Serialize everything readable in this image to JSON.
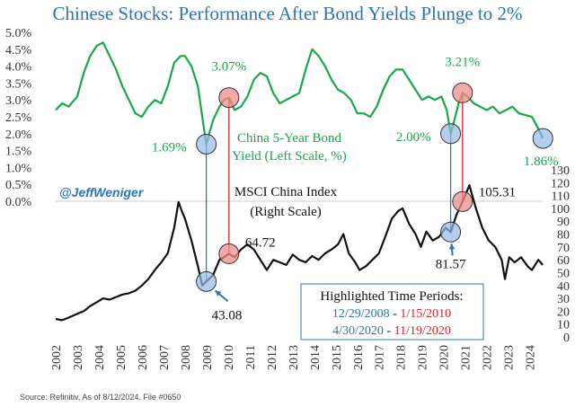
{
  "chart_data": {
    "type": "line",
    "title": "Chinese Stocks: Performance After Bond Yields Plunge to 2%",
    "source": "Source: Refinitiv, As of 8/12/2024. File #0650",
    "handle": "@JeffWeniger",
    "colors": {
      "yield": "#1aa64a",
      "index": "#111111",
      "blue": "#2e74b5",
      "red": "#e02020",
      "title": "#2e74b5"
    },
    "x_ticks": [
      "2002",
      "2003",
      "2004",
      "2005",
      "2006",
      "2007",
      "2008",
      "2009",
      "2010",
      "2011",
      "2012",
      "2013",
      "2014",
      "2015",
      "2016",
      "2017",
      "2018",
      "2019",
      "2020",
      "2021",
      "2022",
      "2023",
      "2024"
    ],
    "xlim": [
      2002,
      2024.6
    ],
    "left_axis": {
      "label": "China 5-Year Bond Yield (Left Scale, %)",
      "ylim": [
        0,
        5
      ],
      "ticks": [
        "0.0%",
        "0.5%",
        "1.0%",
        "1.5%",
        "2.0%",
        "2.5%",
        "3.0%",
        "3.5%",
        "4.0%",
        "4.5%",
        "5.0%"
      ]
    },
    "right_axis": {
      "label": "MSCI China Index (Right Scale)",
      "ylim": [
        0,
        130
      ],
      "ticks": [
        "0",
        "10",
        "20",
        "30",
        "40",
        "50",
        "60",
        "70",
        "80",
        "90",
        "100",
        "110",
        "120",
        "130"
      ]
    },
    "series": [
      {
        "name": "China 5-Year Bond Yield (Left Scale, %)",
        "axis": "left",
        "x": [
          2002.0,
          2002.3,
          2002.6,
          2003.0,
          2003.3,
          2003.6,
          2003.9,
          2004.2,
          2004.5,
          2004.8,
          2005.1,
          2005.4,
          2005.7,
          2006.0,
          2006.3,
          2006.6,
          2006.9,
          2007.2,
          2007.5,
          2007.8,
          2008.0,
          2008.3,
          2008.6,
          2008.8,
          2008.99,
          2009.3,
          2009.6,
          2009.8,
          2010.04,
          2010.3,
          2010.6,
          2010.9,
          2011.2,
          2011.5,
          2011.8,
          2012.1,
          2012.4,
          2012.7,
          2013.0,
          2013.3,
          2013.6,
          2013.9,
          2014.2,
          2014.5,
          2014.8,
          2015.1,
          2015.4,
          2015.7,
          2016.0,
          2016.3,
          2016.6,
          2016.9,
          2017.2,
          2017.5,
          2017.8,
          2018.1,
          2018.4,
          2018.7,
          2019.0,
          2019.3,
          2019.6,
          2019.9,
          2020.15,
          2020.33,
          2020.5,
          2020.7,
          2020.88,
          2021.1,
          2021.4,
          2021.7,
          2022.0,
          2022.3,
          2022.6,
          2022.9,
          2023.2,
          2023.5,
          2023.8,
          2024.1,
          2024.4,
          2024.61
        ],
        "y": [
          2.7,
          2.9,
          2.8,
          3.1,
          3.8,
          4.3,
          4.6,
          4.7,
          4.3,
          3.9,
          3.4,
          3.0,
          2.6,
          2.5,
          2.8,
          3.0,
          2.9,
          3.4,
          4.1,
          4.3,
          4.3,
          4.0,
          3.4,
          2.5,
          1.69,
          2.4,
          2.8,
          3.0,
          3.07,
          2.7,
          2.8,
          3.1,
          3.6,
          3.8,
          3.7,
          3.2,
          2.9,
          3.0,
          3.1,
          3.2,
          3.9,
          4.5,
          4.3,
          4.0,
          3.6,
          3.3,
          3.2,
          3.0,
          2.6,
          2.6,
          2.5,
          2.8,
          3.3,
          3.7,
          3.9,
          3.9,
          3.6,
          3.3,
          3.0,
          3.1,
          3.0,
          3.1,
          2.7,
          2.0,
          2.4,
          2.9,
          3.21,
          3.1,
          2.9,
          2.8,
          2.7,
          2.8,
          2.6,
          2.7,
          2.8,
          2.6,
          2.55,
          2.5,
          2.15,
          1.86
        ]
      },
      {
        "name": "MSCI China Index (Right Scale)",
        "axis": "right",
        "x": [
          2002.0,
          2002.3,
          2002.6,
          2003.0,
          2003.3,
          2003.6,
          2003.9,
          2004.2,
          2004.5,
          2004.8,
          2005.1,
          2005.4,
          2005.7,
          2006.0,
          2006.3,
          2006.6,
          2006.9,
          2007.2,
          2007.5,
          2007.7,
          2007.85,
          2008.0,
          2008.3,
          2008.6,
          2008.8,
          2008.99,
          2009.3,
          2009.6,
          2009.8,
          2010.04,
          2010.3,
          2010.6,
          2010.9,
          2011.2,
          2011.5,
          2011.8,
          2012.1,
          2012.4,
          2012.7,
          2013.0,
          2013.3,
          2013.6,
          2013.9,
          2014.2,
          2014.5,
          2014.8,
          2015.1,
          2015.35,
          2015.6,
          2015.9,
          2016.1,
          2016.4,
          2016.7,
          2017.0,
          2017.3,
          2017.6,
          2017.9,
          2018.1,
          2018.4,
          2018.7,
          2018.95,
          2019.2,
          2019.5,
          2019.8,
          2020.1,
          2020.33,
          2020.6,
          2020.88,
          2021.05,
          2021.2,
          2021.5,
          2021.8,
          2022.1,
          2022.4,
          2022.7,
          2022.85,
          2023.05,
          2023.3,
          2023.6,
          2023.9,
          2024.1,
          2024.4,
          2024.61
        ],
        "y": [
          14,
          13,
          15,
          18,
          20,
          24,
          27,
          30,
          29,
          31,
          33,
          34,
          36,
          40,
          45,
          52,
          58,
          65,
          85,
          105,
          98,
          92,
          75,
          55,
          40,
          43.08,
          48,
          60,
          62,
          64.72,
          62,
          68,
          72,
          68,
          60,
          52,
          60,
          58,
          56,
          64,
          60,
          58,
          63,
          60,
          65,
          68,
          72,
          80,
          65,
          58,
          52,
          55,
          60,
          65,
          78,
          92,
          98,
          100,
          88,
          80,
          70,
          82,
          75,
          78,
          85,
          81.57,
          95,
          105.31,
          112,
          118,
          100,
          85,
          75,
          70,
          60,
          45,
          62,
          58,
          62,
          55,
          52,
          60,
          56
        ]
      }
    ],
    "annotations": [
      {
        "text": "1.69%",
        "series": "yield",
        "x": 2008.99,
        "y": 1.69,
        "color": "blue"
      },
      {
        "text": "3.07%",
        "series": "yield",
        "x": 2010.04,
        "y": 3.07,
        "color": "red"
      },
      {
        "text": "2.00%",
        "series": "yield",
        "x": 2020.33,
        "y": 2.0,
        "color": "blue"
      },
      {
        "text": "3.21%",
        "series": "yield",
        "x": 2020.88,
        "y": 3.21,
        "color": "red"
      },
      {
        "text": "1.86%",
        "series": "yield",
        "x": 2024.61,
        "y": 1.86,
        "color": "blue"
      },
      {
        "text": "43.08",
        "series": "index",
        "x": 2008.99,
        "y": 43.08,
        "color": "blue"
      },
      {
        "text": "64.72",
        "series": "index",
        "x": 2010.04,
        "y": 64.72,
        "color": "red"
      },
      {
        "text": "81.57",
        "series": "index",
        "x": 2020.33,
        "y": 81.57,
        "color": "blue"
      },
      {
        "text": "105.31",
        "series": "index",
        "x": 2020.88,
        "y": 105.31,
        "color": "red"
      }
    ],
    "legend_box": {
      "title": "Highlighted Time Periods:",
      "periods": [
        {
          "start": "12/29/2008",
          "sep": " - ",
          "end": "1/15/2010"
        },
        {
          "start": "4/30/2020",
          "sep": " - ",
          "end": "11/19/2020"
        }
      ]
    },
    "yield_label_lines": [
      "China 5-Year Bond",
      "Yield (Left Scale, %)"
    ],
    "index_label_lines": [
      "MSCI China Index",
      "(Right Scale)"
    ],
    "grid": false
  }
}
